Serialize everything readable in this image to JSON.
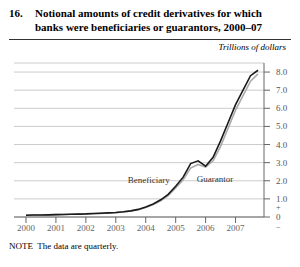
{
  "chart_data": {
    "type": "line",
    "title": "16. Notional amounts of credit derivatives for which\nbanks were beneficiaries or guarantors, 2000–07",
    "y_label": "Trillions of dollars",
    "note": "NOTE  The data are quarterly.",
    "annotations": [
      "+",
      "−"
    ],
    "x": [
      2000.0,
      2000.25,
      2000.5,
      2000.75,
      2001.0,
      2001.25,
      2001.5,
      2001.75,
      2002.0,
      2002.25,
      2002.5,
      2002.75,
      2003.0,
      2003.25,
      2003.5,
      2003.75,
      2004.0,
      2004.25,
      2004.5,
      2004.75,
      2005.0,
      2005.25,
      2005.5,
      2005.75,
      2006.0,
      2006.25,
      2006.5,
      2006.75,
      2007.0,
      2007.25,
      2007.5,
      2007.75
    ],
    "xlim": [
      1999.6,
      2007.95
    ],
    "xticks": [
      2000,
      2001,
      2002,
      2003,
      2004,
      2005,
      2006,
      2007
    ],
    "ylim": [
      0,
      8.5
    ],
    "yticks": [
      0,
      {
        "value": 1.0,
        "label": "1.0"
      },
      {
        "value": 2.0,
        "label": "2.0"
      },
      {
        "value": 3.0,
        "label": "3.0"
      },
      {
        "value": 4.0,
        "label": "4.0"
      },
      {
        "value": 5.0,
        "label": "5.0"
      },
      {
        "value": 6.0,
        "label": "6.0"
      },
      {
        "value": 7.0,
        "label": "7.0"
      },
      {
        "value": 8.0,
        "label": "8.0"
      }
    ],
    "grid": true,
    "series": [
      {
        "name": "Guarantor",
        "color": "#aaaaaa",
        "values": [
          0.1,
          0.11,
          0.11,
          0.12,
          0.13,
          0.14,
          0.15,
          0.16,
          0.17,
          0.18,
          0.2,
          0.22,
          0.24,
          0.28,
          0.33,
          0.4,
          0.53,
          0.69,
          0.9,
          1.18,
          1.6,
          2.05,
          2.7,
          2.9,
          2.75,
          3.1,
          3.9,
          4.9,
          5.9,
          6.7,
          7.5,
          7.9
        ]
      },
      {
        "name": "Beneficiary",
        "color": "#1a1a1a",
        "values": [
          0.1,
          0.11,
          0.11,
          0.12,
          0.13,
          0.14,
          0.15,
          0.16,
          0.17,
          0.19,
          0.21,
          0.23,
          0.25,
          0.29,
          0.34,
          0.42,
          0.55,
          0.72,
          0.95,
          1.25,
          1.7,
          2.2,
          2.95,
          3.1,
          2.8,
          3.3,
          4.2,
          5.2,
          6.2,
          7.0,
          7.8,
          8.1
        ]
      }
    ]
  }
}
